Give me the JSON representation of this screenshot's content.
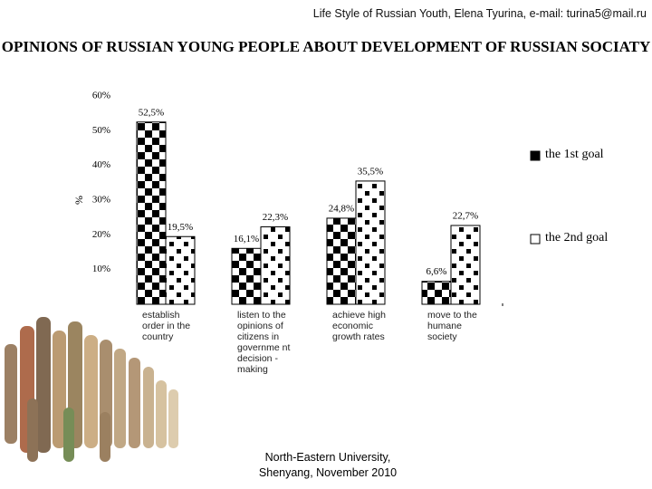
{
  "header": "Life Style of Russian Youth, Elena Tyurina, e-mail: turina5@mail.ru",
  "footer": "North-Eastern University, Shenyang, November 2010",
  "chart_data": {
    "type": "bar",
    "title": "OPINIONS OF RUSSIAN YOUNG PEOPLE ABOUT DEVELOPMENT OF RUSSIAN SOCIATY",
    "y_label": "%",
    "categories": [
      "establish order in the country",
      "listen to the opinions of citizens in governme nt decision -making",
      "achieve high economic growth rates",
      "move to the humane society"
    ],
    "series": [
      {
        "name": "the 1st goal",
        "color": "#000000",
        "values": [
          52.5,
          16.1,
          24.8,
          6.6
        ],
        "value_labels": [
          "52,5%",
          "16,1%",
          "24,8%",
          "6,6%"
        ]
      },
      {
        "name": "the 2nd goal",
        "color": "#ffffff",
        "values": [
          19.5,
          22.3,
          35.5,
          22.7
        ],
        "value_labels": [
          "19,5%",
          "22,3%",
          "35,5%",
          "22,7%"
        ]
      }
    ],
    "ylim": [
      0,
      60
    ],
    "yticks": [
      {
        "value": 10,
        "label": "10%"
      },
      {
        "value": 20,
        "label": "20%"
      },
      {
        "value": 30,
        "label": "30%"
      },
      {
        "value": 40,
        "label": "40%"
      },
      {
        "value": 50,
        "label": "50%"
      },
      {
        "value": 60,
        "label": "60%"
      }
    ]
  }
}
